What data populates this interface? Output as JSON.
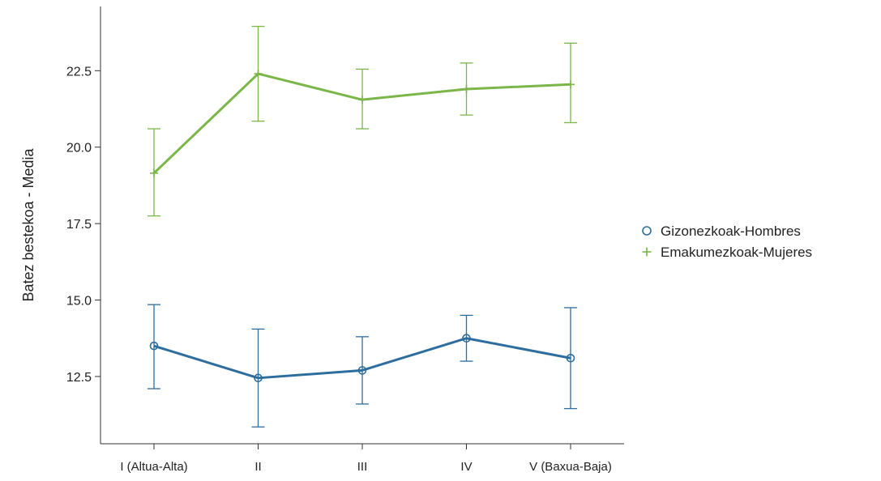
{
  "chart_data": {
    "type": "line",
    "title": "",
    "xlabel": "",
    "ylabel": "Batez bestekoa - Media",
    "categories": [
      "I (Altua-Alta)",
      "II",
      "III",
      "IV",
      "V (Baxua-Baja)"
    ],
    "ylim": [
      10.3,
      24.6
    ],
    "yticks": [
      12.5,
      15.0,
      17.5,
      20.0,
      22.5
    ],
    "ytick_labels": [
      "12.5",
      "15.0",
      "17.5",
      "20.0",
      "22.5"
    ],
    "grid": false,
    "legend_position": "right",
    "series": [
      {
        "name": "Gizonezkoak-Hombres",
        "marker": "circle",
        "color": "#2e6e9e",
        "values": [
          13.5,
          12.45,
          12.7,
          13.75,
          13.1
        ],
        "error_low": [
          12.1,
          10.85,
          11.6,
          13.0,
          11.45
        ],
        "error_high": [
          14.85,
          14.05,
          13.8,
          14.5,
          14.75
        ]
      },
      {
        "name": "Emakumezkoak-Mujeres",
        "marker": "plus",
        "color": "#7ab648",
        "values": [
          19.15,
          22.4,
          21.55,
          21.9,
          22.05
        ],
        "error_low": [
          17.75,
          20.85,
          20.6,
          21.05,
          20.8
        ],
        "error_high": [
          20.6,
          23.95,
          22.55,
          22.75,
          23.4
        ]
      }
    ]
  }
}
